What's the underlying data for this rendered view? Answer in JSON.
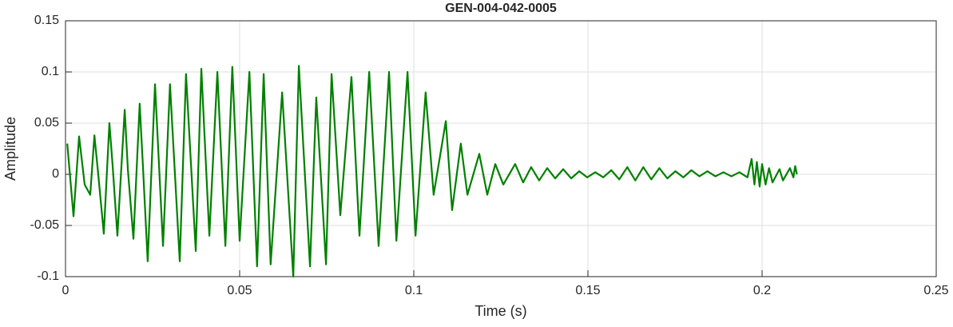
{
  "chart_data": {
    "type": "line",
    "title": "GEN-004-042-0005",
    "x_label": "Time (s)",
    "y_label": "Amplitude",
    "xlim": [
      0,
      0.25
    ],
    "xticks": [
      0,
      0.05,
      0.1,
      0.15,
      0.2,
      0.25
    ],
    "ylim": [
      -0.1,
      0.15
    ],
    "yticks": [
      -0.1,
      -0.05,
      0,
      0.05,
      0.1,
      0.15
    ],
    "grid": true,
    "series": [
      {
        "color": "#008000",
        "x": [
          0.0005,
          0.0023,
          0.0039,
          0.0055,
          0.0071,
          0.0083,
          0.0094,
          0.011,
          0.0126,
          0.0135,
          0.0149,
          0.017,
          0.0179,
          0.0195,
          0.0213,
          0.0222,
          0.0236,
          0.0257,
          0.028,
          0.03,
          0.0328,
          0.0346,
          0.0374,
          0.039,
          0.0413,
          0.0436,
          0.0459,
          0.0479,
          0.05,
          0.0528,
          0.055,
          0.0569,
          0.0589,
          0.0622,
          0.0654,
          0.067,
          0.0702,
          0.072,
          0.0748,
          0.0764,
          0.0789,
          0.0821,
          0.0844,
          0.0872,
          0.0899,
          0.0929,
          0.095,
          0.0982,
          0.1005,
          0.1034,
          0.1057,
          0.1092,
          0.111,
          0.1135,
          0.1154,
          0.1188,
          0.1211,
          0.1234,
          0.1257,
          0.1291,
          0.1314,
          0.1337,
          0.136,
          0.1383,
          0.1406,
          0.1429,
          0.1452,
          0.1475,
          0.1498,
          0.1521,
          0.1544,
          0.1567,
          0.159,
          0.1613,
          0.1636,
          0.1659,
          0.1682,
          0.1705,
          0.1728,
          0.1751,
          0.1774,
          0.1797,
          0.182,
          0.1843,
          0.1866,
          0.1889,
          0.1912,
          0.1935,
          0.1958,
          0.197,
          0.1978,
          0.1985,
          0.1993,
          0.2,
          0.201,
          0.202,
          0.203,
          0.205,
          0.206,
          0.208,
          0.209,
          0.2095,
          0.21
        ],
        "values": [
          0.03,
          -0.041,
          0.037,
          -0.01,
          -0.02,
          0.038,
          0,
          -0.058,
          0.05,
          0.01,
          -0.06,
          0.063,
          0.005,
          -0.063,
          0.069,
          0.01,
          -0.085,
          0.088,
          -0.07,
          0.088,
          -0.085,
          0.098,
          -0.075,
          0.103,
          -0.06,
          0.1,
          -0.07,
          0.105,
          -0.065,
          0.1,
          -0.09,
          0.098,
          -0.088,
          0.08,
          -0.1,
          0.106,
          -0.09,
          0.075,
          -0.088,
          0.098,
          -0.04,
          0.095,
          -0.06,
          0.1,
          -0.07,
          0.1,
          -0.065,
          0.1,
          -0.06,
          0.08,
          -0.02,
          0.052,
          -0.035,
          0.03,
          -0.02,
          0.02,
          -0.02,
          0.01,
          -0.01,
          0.01,
          -0.008,
          0.007,
          -0.006,
          0.006,
          -0.004,
          0.005,
          -0.004,
          0.003,
          -0.003,
          0.002,
          -0.003,
          0.004,
          -0.005,
          0.007,
          -0.006,
          0.007,
          -0.005,
          0.006,
          -0.004,
          0.003,
          -0.003,
          0.004,
          -0.002,
          0.003,
          -0.002,
          0.002,
          -0.002,
          0.002,
          -0.003,
          0.015,
          -0.01,
          0.012,
          -0.012,
          0.01,
          -0.01,
          0.006,
          -0.008,
          0.005,
          -0.006,
          0.006,
          -0.003,
          0.008,
          0
        ]
      }
    ]
  }
}
